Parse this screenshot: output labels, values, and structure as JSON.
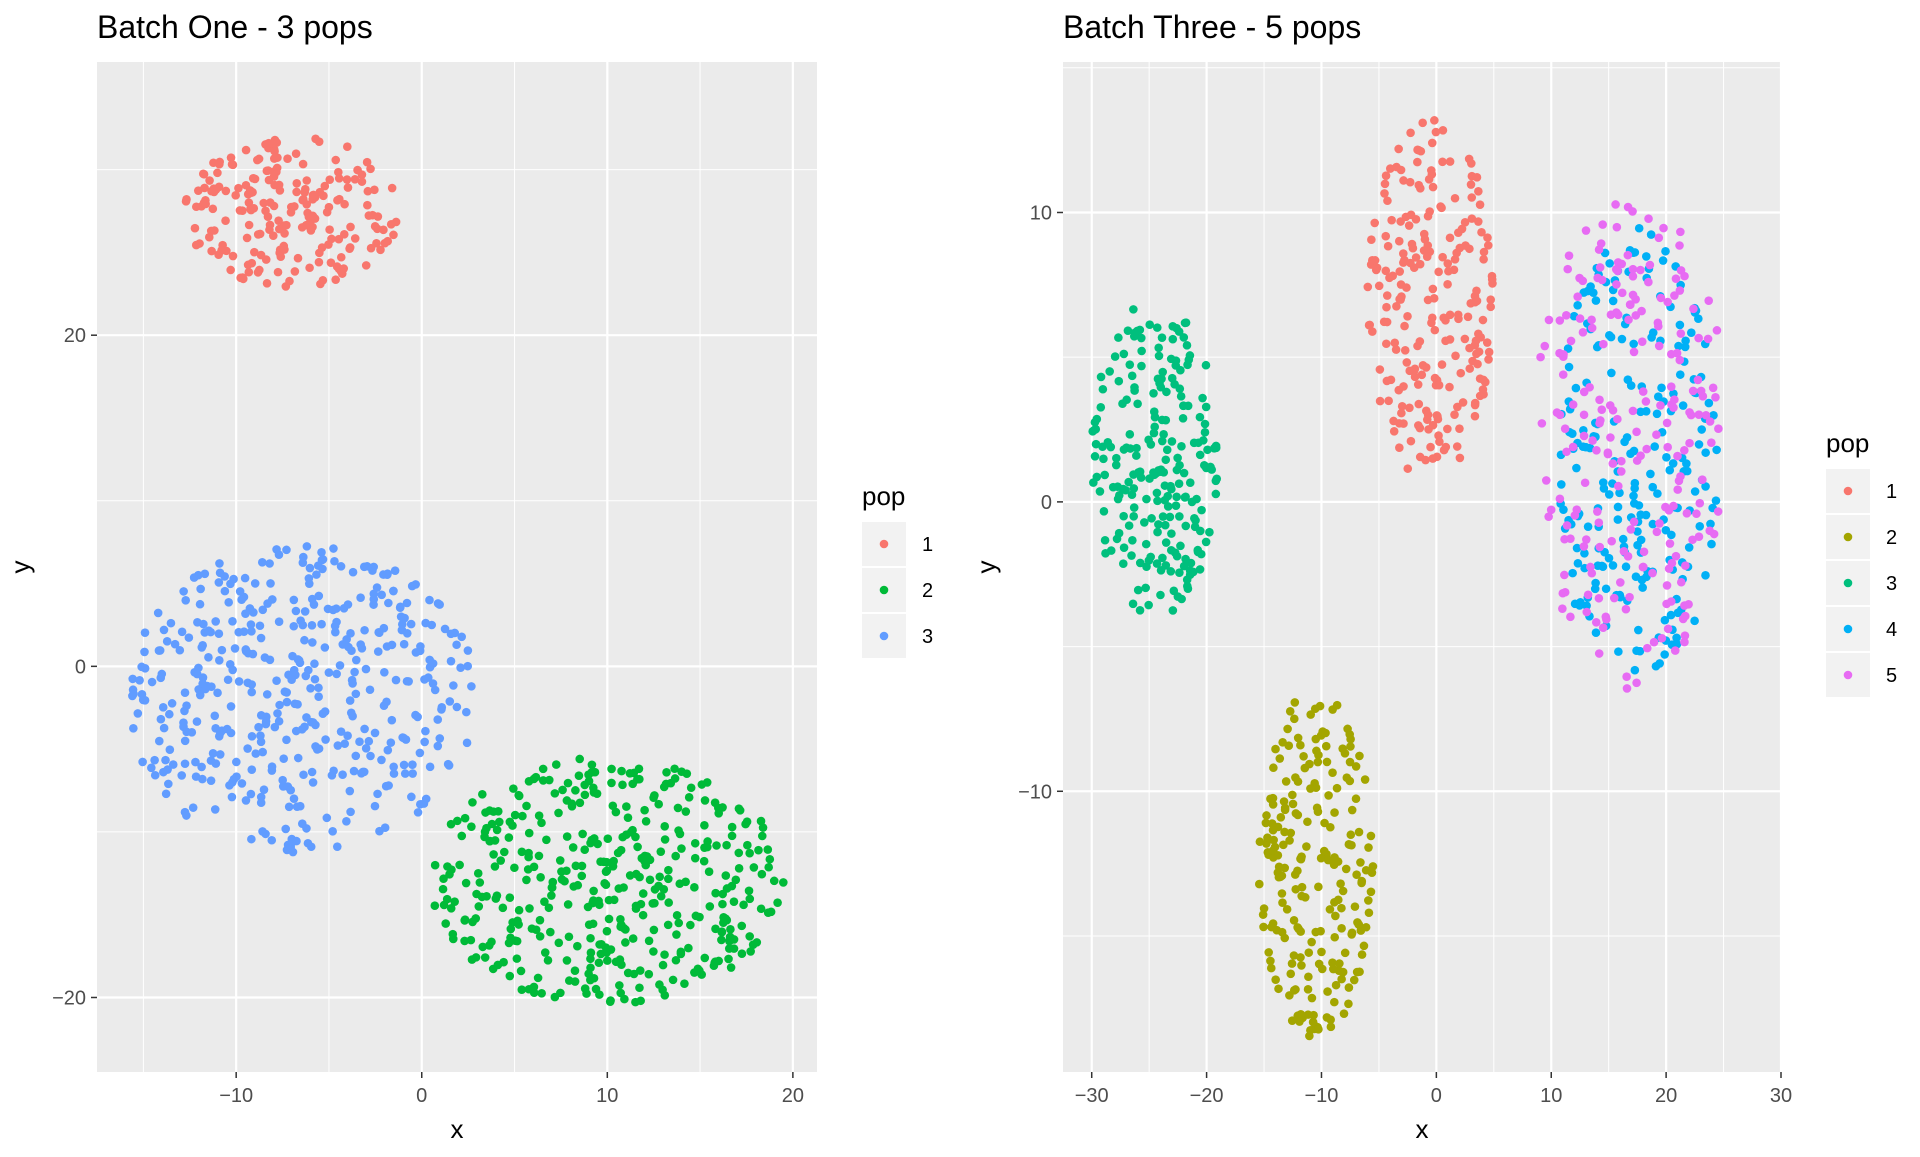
{
  "chart_data": [
    {
      "type": "scatter",
      "title": "Batch One - 3 pops",
      "xlabel": "x",
      "ylabel": "y",
      "xlim": [
        -17.5,
        21.3
      ],
      "ylim": [
        -24.5,
        36.5
      ],
      "xticks": [
        -10,
        0,
        10,
        20
      ],
      "yticks": [
        -20,
        0,
        20
      ],
      "grid": true,
      "legend_title": "pop",
      "legend_position": "right",
      "series": [
        {
          "name": "1",
          "color": "#F8766D",
          "seed": 11,
          "n": 210,
          "cx": -7.0,
          "cy": 27.5,
          "rx": 5.8,
          "ry": 4.6,
          "jitter": 0.0
        },
        {
          "name": "2",
          "color": "#00BA38",
          "seed": 23,
          "n": 420,
          "cx": 10.0,
          "cy": -13.0,
          "rx": 9.5,
          "ry": 7.5,
          "jitter": 0.0
        },
        {
          "name": "3",
          "color": "#619CFF",
          "seed": 37,
          "n": 440,
          "cx": -6.5,
          "cy": -2.0,
          "rx": 9.5,
          "ry": 9.3,
          "jitter": 0.0
        }
      ]
    },
    {
      "type": "scatter",
      "title": "Batch Three - 5 pops",
      "xlabel": "x",
      "ylabel": "y",
      "xlim": [
        -32.5,
        30
      ],
      "ylim": [
        -19.7,
        15.2
      ],
      "xticks": [
        -30,
        -20,
        -10,
        0,
        10,
        20,
        30
      ],
      "yticks": [
        -10,
        0,
        10
      ],
      "grid": true,
      "legend_title": "pop",
      "legend_position": "right",
      "series": [
        {
          "name": "1",
          "color": "#F8766D",
          "seed": 41,
          "n": 230,
          "cx": -0.5,
          "cy": 7.0,
          "rx": 5.5,
          "ry": 6.3,
          "jitter": 0.0
        },
        {
          "name": "2",
          "color": "#A3A500",
          "seed": 53,
          "n": 220,
          "cx": -10.5,
          "cy": -12.5,
          "rx": 5.0,
          "ry": 6.0,
          "jitter": 0.0
        },
        {
          "name": "3",
          "color": "#00BF7D",
          "seed": 67,
          "n": 230,
          "cx": -24.5,
          "cy": 1.5,
          "rx": 5.5,
          "ry": 5.5,
          "jitter": 0.0
        },
        {
          "name": "4",
          "color": "#00B0F6",
          "seed": 79,
          "n": 230,
          "cx": 17.5,
          "cy": 1.5,
          "rx": 7.0,
          "ry": 8.0,
          "jitter": 0.0
        },
        {
          "name": "5",
          "color": "#E76BF3",
          "seed": 83,
          "n": 220,
          "cx": 17.0,
          "cy": 2.0,
          "rx": 8.5,
          "ry": 8.5,
          "jitter": 0.0
        }
      ]
    }
  ]
}
